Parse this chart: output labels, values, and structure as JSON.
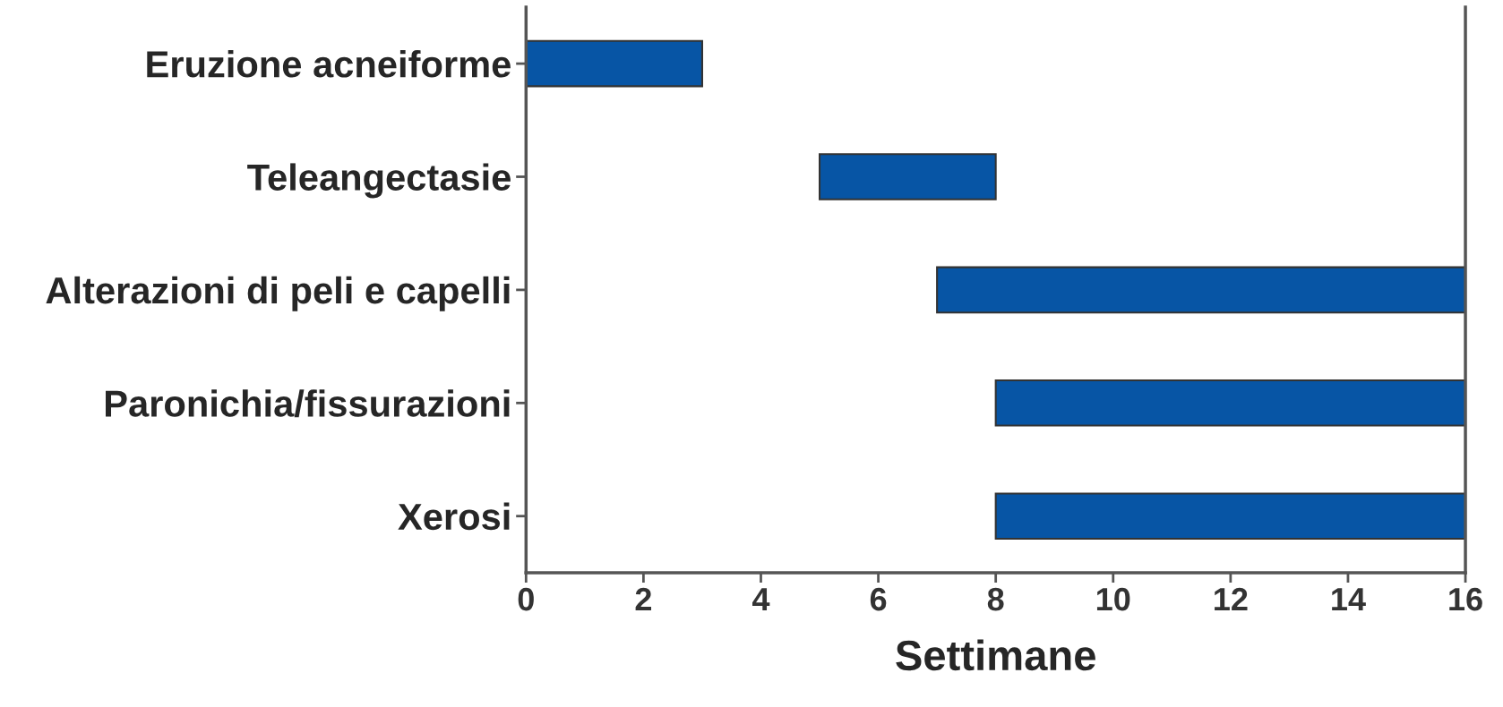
{
  "chart_data": {
    "type": "bar",
    "orientation": "horizontal",
    "categories": [
      "Eruzione acneiforme",
      "Teleangectasie",
      "Alterazioni di peli e capelli",
      "Paronichia/fissurazioni",
      "Xerosi"
    ],
    "values": [
      3,
      3,
      9,
      8,
      8
    ],
    "base": [
      0,
      5,
      7,
      8,
      8
    ],
    "color": "#0755a5",
    "xlabel": "Settimane",
    "xlim": [
      0,
      16
    ],
    "xticks": [
      0,
      2,
      4,
      6,
      8,
      10,
      12,
      14,
      16
    ],
    "grid": false,
    "legend": false
  }
}
